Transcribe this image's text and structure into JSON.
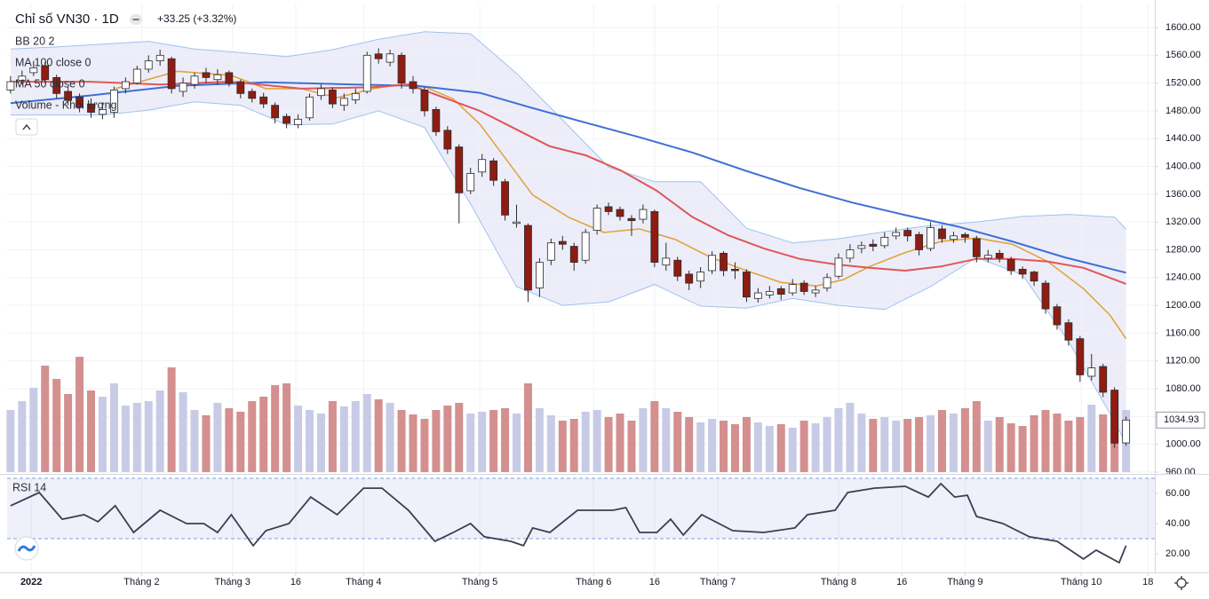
{
  "chart_data": {
    "type": "candlestick",
    "title": "Chỉ số VN30 · 1D",
    "change": "+33.25 (+3.32%)",
    "up_color": "#ffffff",
    "down_color": "#8e1c12",
    "grid": true,
    "xlim": [
      -0.3,
      99.5
    ],
    "xticks": [
      {
        "value": 1.8,
        "label": "2022"
      },
      {
        "value": 11.4,
        "label": "Tháng 2"
      },
      {
        "value": 19.3,
        "label": "Tháng 3"
      },
      {
        "value": 24.8,
        "label": "16"
      },
      {
        "value": 30.7,
        "label": "Tháng 4"
      },
      {
        "value": 40.8,
        "label": "Tháng 5"
      },
      {
        "value": 50.7,
        "label": "Tháng 6"
      },
      {
        "value": 56.0,
        "label": "16"
      },
      {
        "value": 61.5,
        "label": "Tháng 7"
      },
      {
        "value": 72.0,
        "label": "Tháng 8"
      },
      {
        "value": 77.5,
        "label": "16"
      },
      {
        "value": 83.0,
        "label": "Tháng 9"
      },
      {
        "value": 93.1,
        "label": "Tháng 10"
      },
      {
        "value": 98.9,
        "label": "18"
      }
    ],
    "ylim": [
      960,
      1633.2
    ],
    "yticks": [
      {
        "value": 960,
        "label": "960.00"
      },
      {
        "value": 1000,
        "label": "1000.00"
      },
      {
        "value": 1040,
        "label": "1040.00"
      },
      {
        "value": 1080,
        "label": "1080.00"
      },
      {
        "value": 1120,
        "label": "1120.00"
      },
      {
        "value": 1160,
        "label": "1160.00"
      },
      {
        "value": 1200,
        "label": "1200.00"
      },
      {
        "value": 1240,
        "label": "1240.00"
      },
      {
        "value": 1280,
        "label": "1280.00"
      },
      {
        "value": 1320,
        "label": "1320.00"
      },
      {
        "value": 1360,
        "label": "1360.00"
      },
      {
        "value": 1400,
        "label": "1400.00"
      },
      {
        "value": 1440,
        "label": "1440.00"
      },
      {
        "value": 1480,
        "label": "1480.00"
      },
      {
        "value": 1520,
        "label": "1520.00"
      },
      {
        "value": 1560,
        "label": "1560.00"
      },
      {
        "value": 1600,
        "label": "1600.00"
      }
    ],
    "ohlc": [
      [
        1510,
        1530,
        1505,
        1522
      ],
      [
        1524,
        1538,
        1518,
        1530
      ],
      [
        1535,
        1552,
        1530,
        1542
      ],
      [
        1545,
        1550,
        1520,
        1525
      ],
      [
        1528,
        1532,
        1498,
        1505
      ],
      [
        1508,
        1515,
        1488,
        1495
      ],
      [
        1500,
        1505,
        1478,
        1485
      ],
      [
        1490,
        1498,
        1470,
        1478
      ],
      [
        1475,
        1492,
        1468,
        1482
      ],
      [
        1478,
        1515,
        1470,
        1510
      ],
      [
        1512,
        1528,
        1505,
        1522
      ],
      [
        1520,
        1545,
        1518,
        1540
      ],
      [
        1540,
        1560,
        1535,
        1552
      ],
      [
        1552,
        1568,
        1545,
        1560
      ],
      [
        1555,
        1558,
        1505,
        1512
      ],
      [
        1508,
        1528,
        1500,
        1520
      ],
      [
        1518,
        1535,
        1512,
        1530
      ],
      [
        1535,
        1542,
        1520,
        1528
      ],
      [
        1525,
        1540,
        1518,
        1532
      ],
      [
        1535,
        1538,
        1515,
        1520
      ],
      [
        1522,
        1525,
        1498,
        1505
      ],
      [
        1508,
        1512,
        1492,
        1498
      ],
      [
        1500,
        1506,
        1484,
        1490
      ],
      [
        1488,
        1492,
        1462,
        1470
      ],
      [
        1472,
        1476,
        1455,
        1462
      ],
      [
        1460,
        1475,
        1455,
        1468
      ],
      [
        1470,
        1505,
        1466,
        1500
      ],
      [
        1502,
        1518,
        1496,
        1512
      ],
      [
        1510,
        1514,
        1484,
        1490
      ],
      [
        1488,
        1505,
        1480,
        1498
      ],
      [
        1496,
        1512,
        1490,
        1505
      ],
      [
        1508,
        1565,
        1505,
        1560
      ],
      [
        1562,
        1570,
        1548,
        1555
      ],
      [
        1550,
        1568,
        1544,
        1562
      ],
      [
        1560,
        1564,
        1512,
        1520
      ],
      [
        1522,
        1530,
        1505,
        1512
      ],
      [
        1510,
        1514,
        1472,
        1480
      ],
      [
        1482,
        1486,
        1444,
        1450
      ],
      [
        1452,
        1458,
        1418,
        1425
      ],
      [
        1428,
        1432,
        1318,
        1362
      ],
      [
        1365,
        1398,
        1360,
        1390
      ],
      [
        1392,
        1418,
        1385,
        1410
      ],
      [
        1408,
        1412,
        1372,
        1380
      ],
      [
        1378,
        1382,
        1322,
        1330
      ],
      [
        1318,
        1345,
        1312,
        1320
      ],
      [
        1315,
        1318,
        1205,
        1222
      ],
      [
        1225,
        1268,
        1212,
        1262
      ],
      [
        1265,
        1296,
        1258,
        1290
      ],
      [
        1292,
        1300,
        1280,
        1288
      ],
      [
        1285,
        1290,
        1250,
        1262
      ],
      [
        1265,
        1310,
        1260,
        1305
      ],
      [
        1308,
        1345,
        1302,
        1340
      ],
      [
        1342,
        1348,
        1330,
        1335
      ],
      [
        1338,
        1342,
        1322,
        1328
      ],
      [
        1325,
        1330,
        1300,
        1322
      ],
      [
        1324,
        1345,
        1318,
        1338
      ],
      [
        1335,
        1338,
        1255,
        1262
      ],
      [
        1258,
        1290,
        1250,
        1268
      ],
      [
        1265,
        1270,
        1235,
        1242
      ],
      [
        1245,
        1250,
        1222,
        1232
      ],
      [
        1235,
        1255,
        1225,
        1248
      ],
      [
        1250,
        1278,
        1245,
        1272
      ],
      [
        1275,
        1278,
        1242,
        1250
      ],
      [
        1252,
        1262,
        1238,
        1250
      ],
      [
        1248,
        1252,
        1205,
        1212
      ],
      [
        1210,
        1225,
        1204,
        1218
      ],
      [
        1215,
        1228,
        1210,
        1220
      ],
      [
        1224,
        1228,
        1208,
        1216
      ],
      [
        1218,
        1238,
        1214,
        1230
      ],
      [
        1232,
        1236,
        1215,
        1220
      ],
      [
        1218,
        1228,
        1212,
        1222
      ],
      [
        1225,
        1246,
        1220,
        1240
      ],
      [
        1242,
        1275,
        1238,
        1268
      ],
      [
        1268,
        1288,
        1262,
        1280
      ],
      [
        1282,
        1292,
        1275,
        1286
      ],
      [
        1288,
        1295,
        1278,
        1285
      ],
      [
        1286,
        1305,
        1282,
        1298
      ],
      [
        1300,
        1312,
        1295,
        1305
      ],
      [
        1308,
        1312,
        1292,
        1300
      ],
      [
        1302,
        1306,
        1272,
        1280
      ],
      [
        1282,
        1320,
        1278,
        1312
      ],
      [
        1310,
        1315,
        1290,
        1296
      ],
      [
        1295,
        1306,
        1290,
        1300
      ],
      [
        1302,
        1305,
        1290,
        1298
      ],
      [
        1296,
        1300,
        1262,
        1270
      ],
      [
        1268,
        1280,
        1262,
        1272
      ],
      [
        1275,
        1280,
        1262,
        1268
      ],
      [
        1266,
        1270,
        1244,
        1250
      ],
      [
        1252,
        1256,
        1238,
        1245
      ],
      [
        1248,
        1250,
        1228,
        1235
      ],
      [
        1232,
        1236,
        1188,
        1195
      ],
      [
        1198,
        1202,
        1165,
        1172
      ],
      [
        1175,
        1180,
        1142,
        1150
      ],
      [
        1152,
        1156,
        1090,
        1100
      ],
      [
        1098,
        1130,
        1092,
        1110
      ],
      [
        1112,
        1116,
        1068,
        1075
      ],
      [
        1078,
        1082,
        995,
        1001.68
      ],
      [
        1002,
        1040,
        998,
        1034.93
      ]
    ],
    "bollinger": {
      "name": "BB 20 2",
      "color": "#e3a33b",
      "band_color": "#9fc3ee",
      "x": [
        0,
        4,
        8,
        12,
        16,
        20,
        24,
        28,
        32,
        36,
        40,
        44,
        48,
        52,
        56,
        60,
        64,
        68,
        72,
        76,
        80,
        84,
        88,
        92,
        96,
        97
      ],
      "upper": [
        1569,
        1572,
        1576,
        1580,
        1569,
        1564,
        1558,
        1568,
        1583,
        1594,
        1591,
        1534,
        1467,
        1399,
        1378,
        1378,
        1311,
        1290,
        1296,
        1306,
        1315,
        1320,
        1328,
        1331,
        1327,
        1310
      ],
      "lower": [
        1474,
        1474,
        1474,
        1481,
        1493,
        1488,
        1460,
        1461,
        1480,
        1456,
        1346,
        1227,
        1200,
        1205,
        1230,
        1199,
        1196,
        1210,
        1200,
        1194,
        1227,
        1269,
        1244,
        1148,
        1033,
        1001
      ],
      "basis_x": [
        9.1,
        14.5,
        19.2,
        22.2,
        25.3,
        28.4,
        31.5,
        33.8,
        36.1,
        38.5,
        40.8,
        43.1,
        45.4,
        48.5,
        51.6,
        54.7,
        57.8,
        60.9,
        64,
        67,
        70.1,
        72.4,
        74.7,
        77.8,
        80.9,
        84,
        87.1,
        90.2,
        93.3,
        95.6,
        97
      ],
      "basis": [
        1512,
        1537,
        1531,
        1512,
        1512,
        1499,
        1512,
        1518,
        1514,
        1497,
        1461,
        1410,
        1359,
        1327,
        1305,
        1310,
        1295,
        1269,
        1250,
        1233,
        1228,
        1237,
        1256,
        1276,
        1292,
        1297,
        1288,
        1263,
        1224,
        1186,
        1152
      ]
    },
    "moving_averages": [
      {
        "name": "MA 100 close 0",
        "color": "#3d6fd6",
        "x": [
          0,
          6.8,
          14.5,
          22.2,
          30,
          35.4,
          40.8,
          45.4,
          50,
          54.7,
          59.3,
          63.9,
          68.6,
          73.2,
          77.8,
          82.5,
          87.1,
          91.7,
          97
        ],
        "values": [
          1491,
          1502,
          1516,
          1521,
          1518,
          1516,
          1506,
          1484,
          1463,
          1442,
          1420,
          1394,
          1369,
          1348,
          1330,
          1313,
          1292,
          1269,
          1247
        ]
      },
      {
        "name": "MA 50 close 0",
        "color": "#e05656",
        "x": [
          0,
          6.8,
          13,
          19.2,
          25.3,
          31.5,
          34.6,
          37.7,
          40.8,
          43.9,
          46.9,
          50,
          53.1,
          56.2,
          59.3,
          62.4,
          65.5,
          68.6,
          71.7,
          74.7,
          77.8,
          80.9,
          84,
          87.1,
          90.2,
          93.3,
          97
        ],
        "values": [
          1522,
          1522,
          1518,
          1522,
          1512,
          1514,
          1518,
          1499,
          1480,
          1454,
          1429,
          1416,
          1394,
          1365,
          1327,
          1301,
          1282,
          1267,
          1259,
          1254,
          1250,
          1256,
          1267,
          1267,
          1263,
          1254,
          1231
        ]
      }
    ],
    "volume": {
      "name": "Volume - Khối lượng",
      "up_color": "#c8cbe6",
      "down_color": "#d48f8f",
      "values": [
        70,
        80,
        95,
        120,
        105,
        88,
        130,
        92,
        85,
        100,
        75,
        78,
        80,
        92,
        118,
        90,
        70,
        64,
        78,
        72,
        68,
        80,
        85,
        98,
        100,
        75,
        70,
        66,
        80,
        74,
        80,
        88,
        82,
        78,
        70,
        65,
        60,
        70,
        75,
        78,
        66,
        68,
        70,
        72,
        66,
        100,
        72,
        64,
        58,
        60,
        68,
        70,
        62,
        66,
        58,
        72,
        80,
        72,
        68,
        62,
        56,
        60,
        58,
        54,
        62,
        56,
        52,
        54,
        50,
        58,
        55,
        62,
        72,
        78,
        66,
        60,
        62,
        58,
        60,
        62,
        64,
        70,
        66,
        72,
        80,
        58,
        62,
        55,
        52,
        64,
        70,
        66,
        58,
        62,
        76,
        65,
        90,
        70
      ]
    },
    "rsi": {
      "name": "RSI 14",
      "color": "#3a3f52",
      "band_color": "#7ea0d6",
      "ylim": [
        7.6,
        71.2
      ],
      "yticks": [
        {
          "value": 20,
          "label": "20.00"
        },
        {
          "value": 40,
          "label": "40.00"
        },
        {
          "value": 60,
          "label": "60.00"
        }
      ],
      "bands": [
        30,
        70
      ],
      "x": [
        0,
        2.5,
        4.5,
        6.4,
        7.6,
        9.1,
        10.7,
        13,
        15.3,
        16.8,
        18,
        19.2,
        21.1,
        22.2,
        24.2,
        26.1,
        28.4,
        30.7,
        32.3,
        34.6,
        36.9,
        38.5,
        40,
        41.2,
        43.5,
        44.6,
        45.4,
        46.9,
        49.3,
        52.4,
        53.5,
        54.7,
        56.2,
        57.4,
        58.5,
        60.1,
        62.8,
        65.5,
        68.2,
        69.3,
        71.7,
        72.8,
        75.1,
        77.8,
        79.8,
        80.9,
        82.1,
        83.2,
        84,
        86.3,
        88.6,
        91,
        93.3,
        94.4,
        96.4,
        97
      ],
      "values": [
        51.8,
        60.6,
        42.9,
        45.9,
        41.2,
        51.8,
        34.1,
        48.8,
        40,
        40,
        34.1,
        45.9,
        25.3,
        35.3,
        40,
        57.6,
        45.9,
        63.5,
        63.5,
        48.8,
        28.2,
        34.1,
        40,
        31.2,
        28.2,
        25.3,
        37.1,
        34.1,
        48.8,
        48.8,
        50.6,
        34.1,
        34.1,
        42.9,
        32.4,
        45.9,
        35.3,
        34.1,
        37.1,
        45.9,
        48.8,
        60.6,
        63.5,
        64.7,
        57.6,
        66.5,
        57.6,
        58.8,
        44.7,
        40,
        31.2,
        28.2,
        16.5,
        22.4,
        14.1,
        25.3
      ]
    }
  }
}
